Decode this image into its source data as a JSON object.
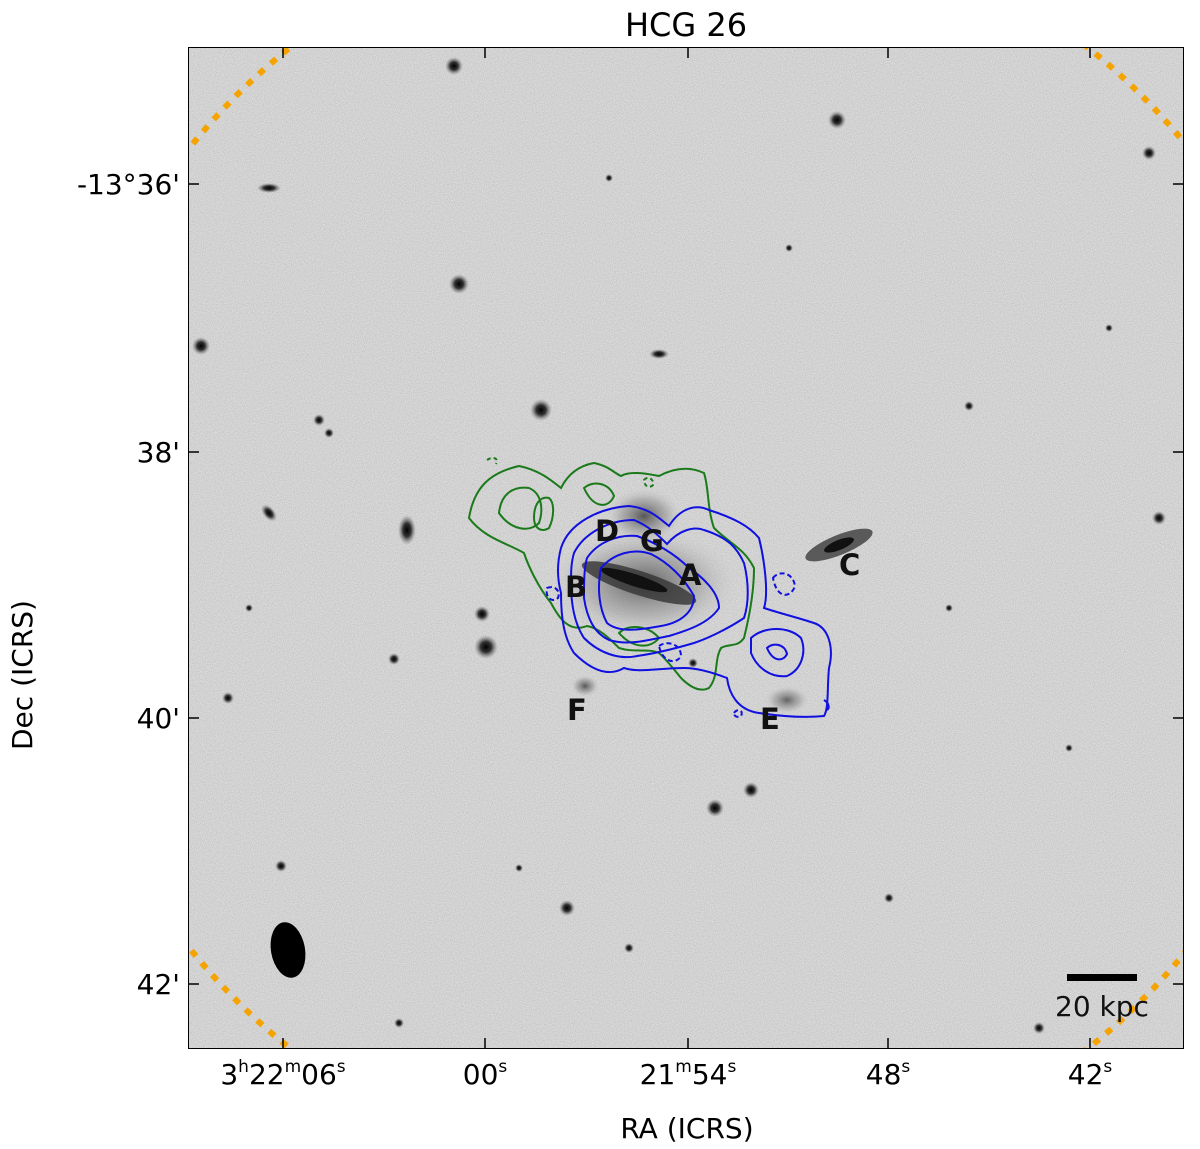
{
  "title": "HCG 26",
  "axes": {
    "xlabel": "RA (ICRS)",
    "ylabel": "Dec (ICRS)",
    "xticks": [
      {
        "main": "3",
        "u1": "h",
        "m": "22",
        "u2": "m",
        "s": "06",
        "u3": "s"
      },
      {
        "main": "00",
        "u3": "s"
      },
      {
        "main": "21",
        "u2": "m",
        "s": "54",
        "u3": "s"
      },
      {
        "main": "48",
        "u3": "s"
      },
      {
        "main": "42",
        "u3": "s"
      }
    ],
    "yticks": [
      "-13°36'",
      "38'",
      "40'",
      "42'"
    ]
  },
  "galaxy_labels": [
    "A",
    "B",
    "C",
    "D",
    "E",
    "F",
    "G"
  ],
  "scale_bar": {
    "label": "20 kpc"
  },
  "colors": {
    "background": "#dcdcdc",
    "contour_hi": "#1010e0",
    "contour_green": "#1a7a1a",
    "primary_beam": "#f5a300",
    "beam": "#000000"
  }
}
